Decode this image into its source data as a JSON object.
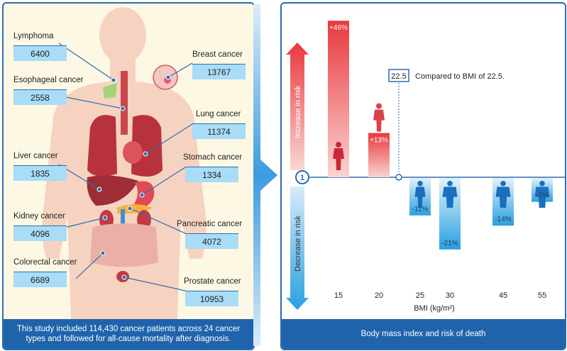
{
  "left": {
    "footer": "This study included 114,430 cancer patients across 24 cancer types and followed for all-cause mortality after diagnosis.",
    "cancers": [
      {
        "name": "Lymphoma",
        "count": "6400"
      },
      {
        "name": "Esophageal cancer",
        "count": "2558"
      },
      {
        "name": "Liver cancer",
        "count": "1835"
      },
      {
        "name": "Kidney cancer",
        "count": "4096"
      },
      {
        "name": "Colorectal cancer",
        "count": "6689"
      },
      {
        "name": "Breast cancer",
        "count": "13767"
      },
      {
        "name": "Lung cancer",
        "count": "11374"
      },
      {
        "name": "Stomach cancer",
        "count": "1334"
      },
      {
        "name": "Pancreatic cancer",
        "count": "4072"
      },
      {
        "name": "Prostate cancer",
        "count": "10953"
      }
    ]
  },
  "right": {
    "footer": "Body mass index and risk of death",
    "increase_label": "Increase in risk",
    "decrease_label": "Decrease in risk",
    "reference_value": "1",
    "reference_bmi_box": "22.5",
    "reference_note": "Compared to BMI of 22.5.",
    "colors": {
      "increase": "#e8383d",
      "decrease": "#2a9fe0"
    }
  },
  "chart_data": {
    "type": "bar",
    "xlabel": "BMI (kg/m²)",
    "ylabel": "",
    "reference_bmi": 22.5,
    "categories": [
      "15",
      "20",
      "25",
      "30",
      "45",
      "55"
    ],
    "values": [
      46,
      13,
      -11,
      -21,
      -14,
      -7
    ],
    "data_labels": [
      "+46%",
      "+13%",
      "-11%",
      "-21%",
      "-14%",
      "-7%"
    ]
  }
}
